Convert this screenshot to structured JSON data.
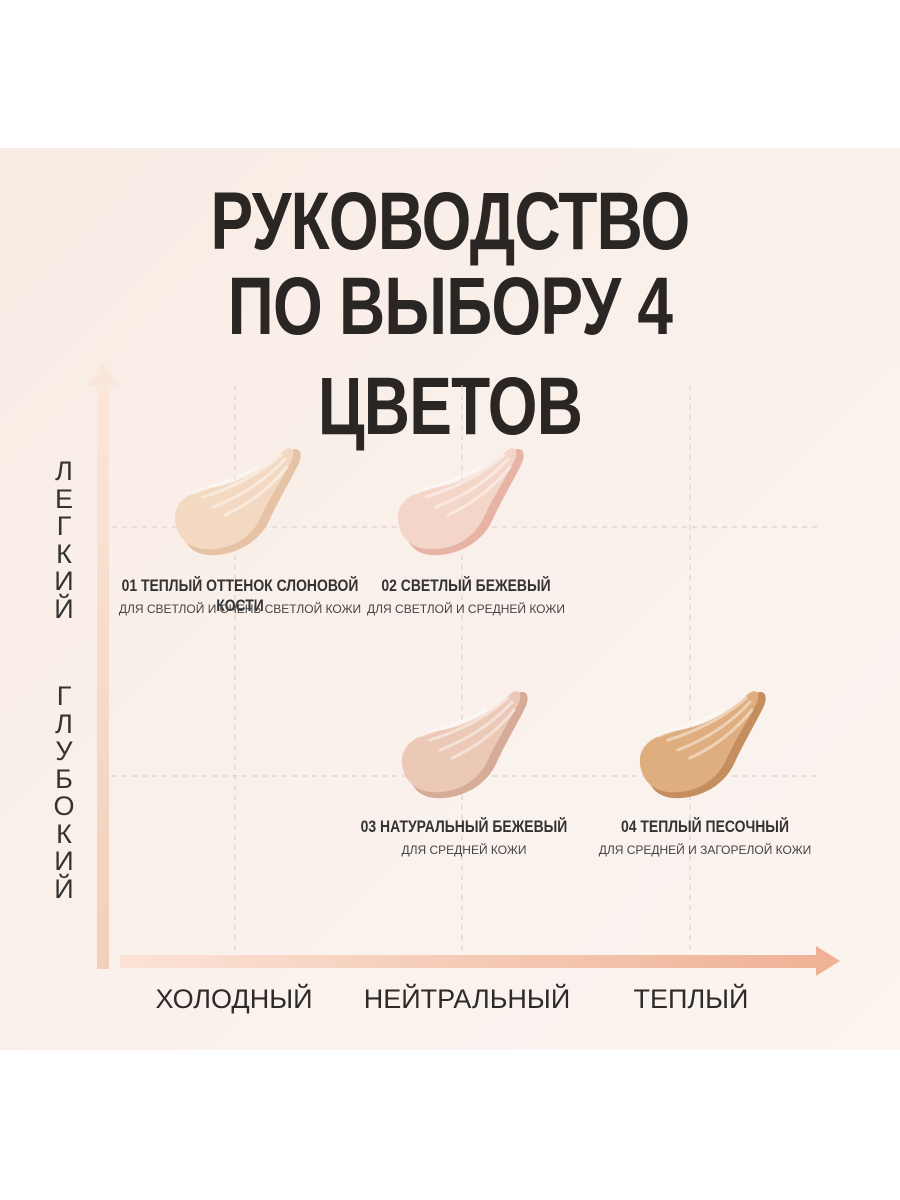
{
  "title": {
    "line1": "РУКОВОДСТВО",
    "line2": "ПО ВЫБОРУ 4 ЦВЕТОВ"
  },
  "y_axis": {
    "top_label": "ЛЕГКИЙ",
    "bottom_label": "ГЛУБОКИЙ"
  },
  "x_axis": {
    "labels": [
      "ХОЛОДНЫЙ",
      "НЕЙТРАЛЬНЫЙ",
      "ТЕПЛЫЙ"
    ]
  },
  "shades": [
    {
      "name": "01 ТЕПЛЫЙ ОТТЕНОК СЛОНОВОЙ КОСТИ",
      "subtitle": "ДЛЯ СВЕТЛОЙ И ОЧЕНЬ СВЕТЛОЙ КОЖИ",
      "color": "#f3d9c1",
      "color_shadow": "#e7c3a6",
      "tone": "ХОЛОДНЫЙ",
      "depth": "ЛЕГКИЙ",
      "icon": "cream-swatch-icon"
    },
    {
      "name": "02 СВЕТЛЫЙ БЕЖЕВЫЙ",
      "subtitle": "ДЛЯ СВЕТЛОЙ И СРЕДНЕЙ КОЖИ",
      "color": "#f4d6c9",
      "color_shadow": "#e6b3a5",
      "tone": "НЕЙТРАЛЬНЫЙ",
      "depth": "ЛЕГКИЙ",
      "icon": "cream-swatch-icon"
    },
    {
      "name": "03 НАТУРАЛЬНЫЙ БЕЖЕВЫЙ",
      "subtitle": "ДЛЯ СРЕДНЕЙ КОЖИ",
      "color": "#ecc8b6",
      "color_shadow": "#d6ab97",
      "tone": "НЕЙТРАЛЬНЫЙ",
      "depth": "ГЛУБОКИЙ",
      "icon": "cream-swatch-icon"
    },
    {
      "name": "04 ТЕПЛЫЙ ПЕСОЧНЫЙ",
      "subtitle": "ДЛЯ СРЕДНЕЙ И ЗАГОРЕЛОЙ КОЖИ",
      "color": "#dfae7f",
      "color_shadow": "#c58e5e",
      "tone": "ТЕПЛЫЙ",
      "depth": "ГЛУБОКИЙ",
      "icon": "cream-swatch-icon"
    }
  ],
  "colors": {
    "background": "#f8ece4",
    "axis_gradient_start": "#fbe3d6",
    "axis_gradient_end": "#efb296",
    "grid_dash": "#d6cac3",
    "text": "#2a2624"
  }
}
